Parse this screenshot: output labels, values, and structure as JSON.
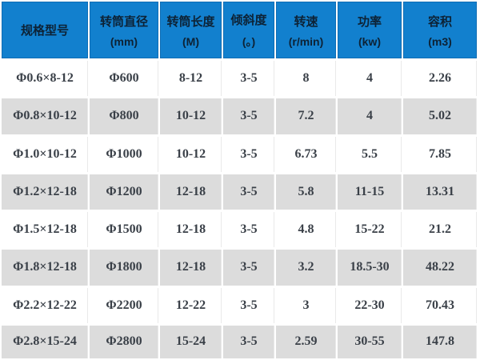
{
  "chart_data": {
    "type": "table",
    "title": "",
    "columns": [
      {
        "label": "规格型号",
        "unit": ""
      },
      {
        "label": "转筒直径",
        "unit": "(mm)"
      },
      {
        "label": "转筒长度",
        "unit": "(M)"
      },
      {
        "label": "倾斜度",
        "unit": "(。)"
      },
      {
        "label": "转速",
        "unit": "(r/min)"
      },
      {
        "label": "功率",
        "unit": "(kw)"
      },
      {
        "label": "容积",
        "unit": "(m3)"
      }
    ],
    "rows": [
      [
        "Φ0.6×8-12",
        "Φ600",
        "8-12",
        "3-5",
        "8",
        "4",
        "2.26"
      ],
      [
        "Φ0.8×10-12",
        "Φ800",
        "10-12",
        "3-5",
        "7.2",
        "4",
        "5.02"
      ],
      [
        "Φ1.0×10-12",
        "Φ1000",
        "10-12",
        "3-5",
        "6.73",
        "5.5",
        "7.85"
      ],
      [
        "Φ1.2×12-18",
        "Φ1200",
        "12-18",
        "3-5",
        "5.8",
        "11-15",
        "13.31"
      ],
      [
        "Φ1.5×12-18",
        "Φ1500",
        "12-18",
        "3-5",
        "4.8",
        "15-22",
        "21.2"
      ],
      [
        "Φ1.8×12-18",
        "Φ1800",
        "12-18",
        "3-5",
        "3.2",
        "18.5-30",
        "48.22"
      ],
      [
        "Φ2.2×12-22",
        "Φ2200",
        "12-22",
        "3-5",
        "3",
        "22-30",
        "70.43"
      ],
      [
        "Φ2.8×15-24",
        "Φ2800",
        "15-24",
        "3-5",
        "2.59",
        "30-55",
        "147.8"
      ]
    ]
  },
  "colors": {
    "header_bg": "#1280ce",
    "header_text": "#0d2235",
    "row_bg": "#ffffff",
    "row_alt_bg": "#dcdcdc",
    "cell_text": "#3a4048",
    "separator": "#ffffff"
  }
}
